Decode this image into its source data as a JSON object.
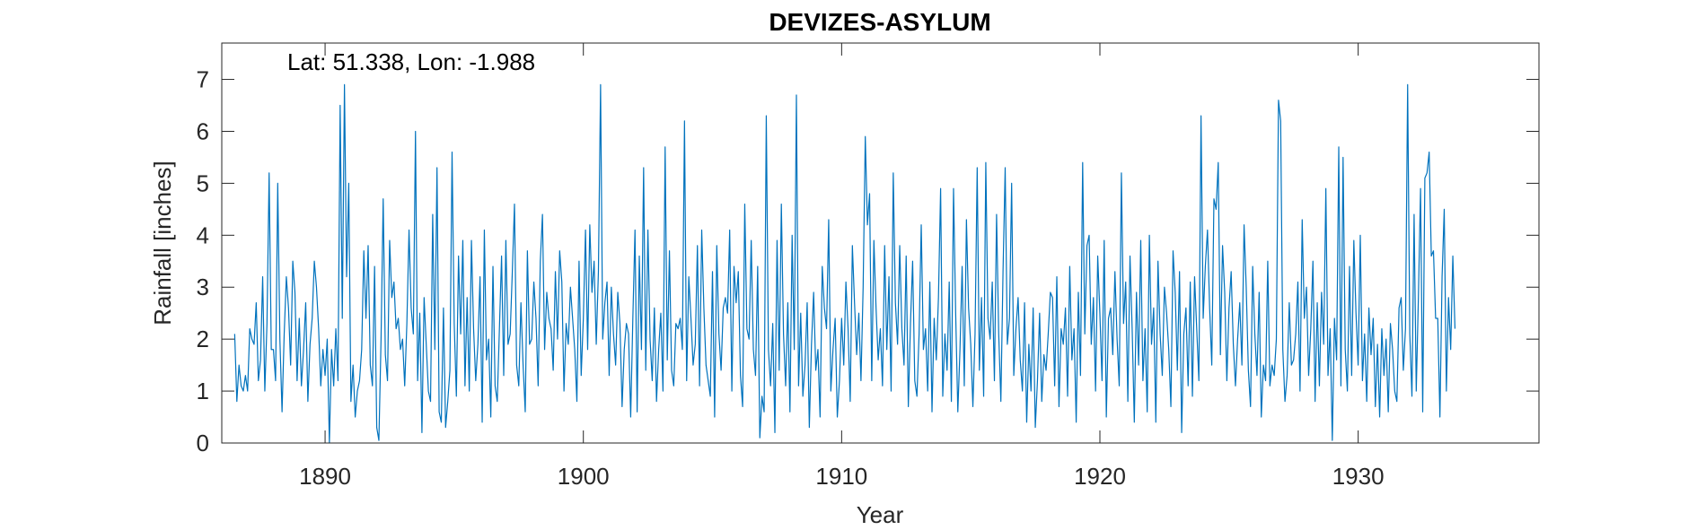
{
  "chart_data": {
    "type": "line",
    "title": "DEVIZES-ASYLUM",
    "xlabel": "Year",
    "ylabel": "Rainfall [inches]",
    "annotation": "Lat: 51.338, Lon: -1.988",
    "xlim": [
      1886,
      1937
    ],
    "ylim": [
      0,
      7.7
    ],
    "xticks": [
      1890,
      1900,
      1910,
      1920,
      1930
    ],
    "yticks": [
      0,
      1,
      2,
      3,
      4,
      5,
      6,
      7
    ],
    "grid": false,
    "series": [
      {
        "color": "#0072bd",
        "start_year": 1886.5,
        "step_years": 0.08333,
        "values": [
          2.1,
          0.8,
          1.5,
          1.1,
          1.0,
          1.3,
          1.0,
          2.2,
          2.0,
          1.9,
          2.7,
          1.2,
          1.6,
          3.2,
          1.0,
          2.3,
          5.2,
          1.8,
          1.8,
          1.2,
          5.0,
          2.0,
          0.6,
          2.1,
          3.2,
          2.6,
          1.5,
          3.5,
          2.9,
          1.2,
          2.4,
          1.1,
          1.8,
          2.7,
          0.8,
          1.9,
          2.4,
          3.5,
          3.0,
          2.2,
          1.1,
          1.8,
          1.3,
          2.0,
          0.0,
          1.8,
          1.1,
          2.2,
          1.2,
          6.5,
          2.4,
          6.9,
          3.2,
          5.0,
          0.8,
          1.5,
          0.5,
          1.0,
          1.2,
          1.8,
          3.7,
          2.4,
          3.8,
          1.5,
          1.1,
          3.4,
          0.3,
          0.05,
          2.0,
          4.7,
          1.7,
          1.2,
          3.9,
          2.8,
          3.1,
          2.2,
          2.4,
          1.8,
          2.0,
          1.1,
          2.3,
          4.1,
          2.6,
          2.1,
          6.0,
          1.2,
          2.5,
          0.2,
          2.8,
          1.9,
          1.0,
          0.8,
          4.4,
          1.8,
          5.3,
          0.6,
          0.4,
          2.6,
          0.3,
          0.8,
          1.4,
          5.6,
          2.3,
          0.9,
          3.6,
          2.1,
          3.9,
          1.1,
          2.8,
          1.0,
          3.9,
          2.2,
          1.2,
          1.9,
          3.2,
          0.4,
          4.1,
          1.6,
          2.0,
          0.5,
          3.4,
          1.1,
          0.8,
          2.2,
          3.6,
          1.3,
          3.9,
          1.9,
          2.1,
          3.3,
          4.6,
          1.5,
          1.1,
          2.7,
          1.5,
          0.6,
          3.7,
          1.9,
          2.0,
          3.1,
          2.4,
          1.1,
          3.5,
          4.4,
          1.8,
          2.9,
          2.4,
          2.2,
          1.4,
          3.3,
          2.0,
          3.7,
          3.1,
          1.0,
          2.3,
          1.9,
          3.0,
          2.4,
          1.8,
          0.8,
          3.5,
          1.3,
          2.4,
          4.1,
          1.8,
          4.2,
          2.9,
          3.5,
          1.9,
          3.3,
          6.9,
          2.0,
          2.7,
          3.1,
          1.3,
          3.0,
          2.1,
          1.5,
          2.9,
          2.3,
          0.7,
          1.8,
          2.3,
          2.1,
          0.5,
          2.4,
          4.1,
          0.6,
          3.6,
          1.8,
          5.3,
          1.4,
          4.1,
          2.0,
          1.2,
          2.6,
          0.8,
          1.8,
          2.5,
          1.0,
          5.7,
          1.6,
          3.7,
          1.4,
          1.1,
          2.3,
          2.2,
          2.4,
          1.8,
          6.2,
          1.2,
          3.2,
          2.4,
          1.5,
          1.9,
          3.8,
          1.1,
          4.1,
          2.6,
          1.5,
          1.2,
          0.9,
          3.3,
          0.5,
          3.8,
          2.1,
          1.4,
          2.6,
          2.8,
          2.5,
          4.1,
          1.0,
          3.4,
          2.7,
          3.3,
          1.3,
          0.7,
          4.6,
          2.2,
          2.0,
          3.9,
          1.8,
          1.3,
          3.4,
          0.1,
          0.9,
          0.6,
          6.3,
          1.8,
          1.1,
          2.3,
          0.2,
          3.9,
          1.4,
          4.6,
          2.1,
          1.1,
          2.7,
          0.6,
          4.0,
          1.8,
          6.7,
          1.1,
          2.5,
          0.9,
          1.5,
          2.7,
          0.3,
          1.9,
          2.9,
          1.4,
          1.8,
          0.5,
          3.4,
          2.6,
          2.2,
          4.3,
          1.0,
          1.8,
          2.4,
          0.5,
          1.2,
          2.4,
          1.5,
          3.1,
          2.2,
          0.8,
          3.8,
          2.7,
          1.7,
          2.5,
          1.2,
          3.0,
          5.9,
          4.2,
          4.8,
          1.2,
          3.9,
          2.6,
          1.6,
          2.2,
          1.1,
          3.8,
          1.8,
          3.2,
          1.0,
          5.2,
          2.7,
          1.9,
          3.8,
          2.2,
          1.5,
          3.6,
          0.7,
          2.3,
          3.5,
          1.2,
          0.9,
          2.1,
          4.2,
          1.8,
          2.2,
          1.0,
          3.1,
          0.6,
          2.4,
          1.6,
          2.8,
          4.9,
          0.9,
          2.1,
          1.4,
          3.1,
          0.8,
          4.9,
          2.5,
          0.6,
          1.8,
          3.4,
          1.1,
          4.3,
          2.6,
          1.9,
          0.7,
          2.1,
          5.3,
          1.4,
          2.8,
          0.9,
          5.4,
          2.4,
          2.0,
          3.1,
          1.2,
          4.4,
          2.1,
          0.8,
          3.3,
          5.3,
          1.9,
          2.4,
          5.0,
          1.3,
          2.2,
          2.8,
          1.6,
          1.0,
          2.7,
          0.4,
          1.9,
          1.0,
          2.6,
          0.3,
          1.2,
          2.5,
          0.8,
          1.7,
          1.4,
          2.1,
          2.9,
          2.8,
          1.1,
          3.2,
          0.7,
          2.2,
          1.9,
          2.6,
          0.9,
          3.4,
          1.6,
          2.2,
          0.4,
          2.9,
          1.3,
          5.4,
          2.1,
          3.8,
          4.0,
          1.9,
          2.8,
          1.0,
          3.6,
          2.5,
          1.2,
          3.9,
          0.5,
          2.4,
          2.6,
          1.7,
          3.3,
          2.0,
          1.1,
          5.2,
          2.3,
          3.1,
          0.8,
          3.6,
          2.2,
          0.4,
          2.9,
          1.5,
          3.9,
          1.2,
          2.2,
          0.6,
          4.0,
          1.9,
          2.6,
          0.4,
          3.5,
          2.1,
          1.3,
          3.0,
          2.5,
          1.8,
          0.7,
          3.7,
          2.9,
          1.4,
          3.3,
          0.2,
          2.1,
          2.6,
          1.1,
          3.1,
          0.9,
          3.2,
          2.2,
          1.2,
          6.3,
          2.4,
          3.4,
          4.1,
          2.6,
          1.5,
          4.7,
          4.5,
          5.4,
          1.7,
          3.8,
          2.9,
          1.2,
          2.6,
          3.3,
          1.9,
          1.1,
          2.0,
          2.7,
          1.5,
          4.2,
          3.0,
          1.4,
          0.7,
          3.4,
          2.1,
          1.3,
          2.9,
          0.5,
          1.5,
          1.2,
          3.5,
          1.1,
          1.5,
          1.3,
          2.0,
          6.6,
          6.2,
          1.8,
          0.8,
          1.3,
          2.7,
          1.5,
          1.6,
          2.1,
          3.1,
          1.0,
          4.3,
          2.4,
          3.0,
          1.3,
          2.2,
          3.5,
          0.8,
          2.7,
          1.1,
          2.9,
          1.9,
          4.9,
          1.3,
          2.2,
          0.05,
          2.4,
          1.6,
          5.7,
          1.1,
          5.5,
          1.8,
          1.0,
          3.4,
          1.3,
          3.9,
          2.5,
          1.5,
          4.0,
          1.2,
          2.1,
          0.8,
          2.6,
          1.7,
          2.4,
          0.7,
          1.9,
          0.5,
          2.2,
          1.3,
          2.0,
          0.6,
          2.3,
          1.8,
          1.0,
          0.8,
          2.6,
          2.8,
          1.4,
          2.2,
          6.9,
          2.1,
          0.9,
          4.4,
          1.0,
          2.8,
          4.9,
          0.6,
          5.1,
          5.2,
          5.6,
          3.6,
          3.7,
          2.4,
          2.4,
          0.5,
          3.2,
          4.5,
          1.0,
          2.8,
          1.8,
          3.6,
          2.2
        ]
      }
    ]
  }
}
